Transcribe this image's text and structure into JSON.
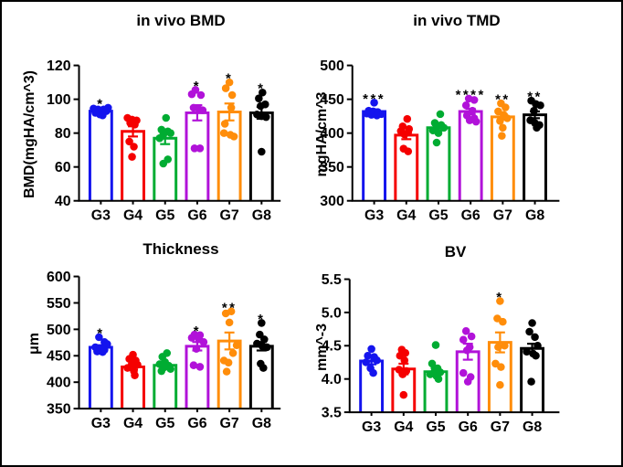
{
  "figure": {
    "background": "#ffffff",
    "border_color": "#000000"
  },
  "groups": {
    "labels": [
      "G3",
      "G4",
      "G5",
      "G6",
      "G7",
      "G8"
    ],
    "colors": [
      "#1414EE",
      "#F50000",
      "#00AC32",
      "#B112D9",
      "#FF8D0A",
      "#000000"
    ]
  },
  "points_format": "[value, x_jitter_px]",
  "chart_data": [
    {
      "type": "bar",
      "title": "in vivo BMD",
      "ylabel": "BMD(mgHA/cm^3)",
      "ylim": [
        40,
        120
      ],
      "yticks": [
        40,
        60,
        80,
        100,
        120
      ],
      "ytick_labels": [
        "40",
        "60",
        "80",
        "100",
        "120"
      ],
      "categories": [
        "G3",
        "G4",
        "G5",
        "G6",
        "G7",
        "G8"
      ],
      "bar_means": [
        93,
        81,
        77,
        92,
        92.5,
        92
      ],
      "bar_sem": [
        1.5,
        3,
        3.5,
        4.5,
        5,
        3.5
      ],
      "significance": [
        "*",
        "",
        "",
        "*",
        "*",
        "*"
      ],
      "points": [
        [
          [
            95,
            8
          ],
          [
            94.5,
            -8
          ],
          [
            94,
            -3
          ],
          [
            94,
            3
          ],
          [
            93,
            6
          ],
          [
            92,
            -6
          ],
          [
            91,
            -1
          ],
          [
            90.5,
            2
          ]
        ],
        [
          [
            89,
            -6
          ],
          [
            88,
            -1
          ],
          [
            87.5,
            4
          ],
          [
            86,
            -3
          ],
          [
            85,
            2
          ],
          [
            75,
            -4
          ],
          [
            72,
            1
          ],
          [
            66,
            -1
          ]
        ],
        [
          [
            89,
            1
          ],
          [
            82,
            -4
          ],
          [
            81,
            3
          ],
          [
            80,
            6
          ],
          [
            79,
            -2
          ],
          [
            77,
            -6
          ],
          [
            64.5,
            3
          ],
          [
            62,
            -2
          ]
        ],
        [
          [
            105.5,
            -2
          ],
          [
            103,
            -6
          ],
          [
            102.5,
            4
          ],
          [
            95,
            -4
          ],
          [
            94,
            2
          ],
          [
            93.5,
            6
          ],
          [
            71,
            -3
          ],
          [
            71,
            3
          ]
        ],
        [
          [
            110,
            0
          ],
          [
            106.5,
            -4
          ],
          [
            102.5,
            3
          ],
          [
            95,
            2
          ],
          [
            85.5,
            -5
          ],
          [
            80,
            -6
          ],
          [
            79,
            1
          ],
          [
            78,
            5
          ]
        ],
        [
          [
            104,
            1
          ],
          [
            100.5,
            -3
          ],
          [
            97,
            4
          ],
          [
            96,
            -1
          ],
          [
            91,
            -5
          ],
          [
            90,
            0
          ],
          [
            89.5,
            5
          ],
          [
            69,
            0
          ]
        ]
      ]
    },
    {
      "type": "bar",
      "title": "in vivo TMD",
      "ylabel": "mgHA/cm^3",
      "ylim": [
        300,
        500
      ],
      "yticks": [
        300,
        350,
        400,
        450,
        500
      ],
      "ytick_labels": [
        "300",
        "350",
        "400",
        "450",
        "500"
      ],
      "categories": [
        "G3",
        "G4",
        "G5",
        "G6",
        "G7",
        "G8"
      ],
      "bar_means": [
        432,
        397,
        408,
        432,
        424,
        427
      ],
      "bar_sem": [
        3,
        6,
        4,
        4,
        4,
        5
      ],
      "significance": [
        "***",
        "",
        "",
        "****",
        "**",
        "**"
      ],
      "points": [
        [
          [
            445,
            0
          ],
          [
            433,
            -6
          ],
          [
            432,
            -1
          ],
          [
            431,
            4
          ],
          [
            429,
            -8
          ],
          [
            428,
            8
          ],
          [
            427,
            -3
          ],
          [
            426,
            3
          ]
        ],
        [
          [
            421,
            1
          ],
          [
            410,
            -4
          ],
          [
            406,
            3
          ],
          [
            403,
            -6
          ],
          [
            401,
            2
          ],
          [
            398,
            -2
          ],
          [
            377,
            -3
          ],
          [
            373,
            2
          ]
        ],
        [
          [
            428,
            2
          ],
          [
            415,
            -4
          ],
          [
            412,
            3
          ],
          [
            410,
            -1
          ],
          [
            408,
            6
          ],
          [
            404,
            -6
          ],
          [
            400,
            0
          ],
          [
            386,
            -2
          ]
        ],
        [
          [
            451,
            -2
          ],
          [
            449,
            4
          ],
          [
            441,
            -5
          ],
          [
            433,
            2
          ],
          [
            426,
            -4
          ],
          [
            422,
            4
          ],
          [
            419,
            -1
          ],
          [
            417,
            6
          ]
        ],
        [
          [
            444,
            -2
          ],
          [
            438,
            3
          ],
          [
            432,
            -5
          ],
          [
            427,
            1
          ],
          [
            422,
            5
          ],
          [
            418,
            -3
          ],
          [
            408,
            0
          ],
          [
            396,
            -1
          ]
        ],
        [
          [
            448,
            -4
          ],
          [
            443,
            1
          ],
          [
            441,
            6
          ],
          [
            433,
            -1
          ],
          [
            419,
            -5
          ],
          [
            415,
            0
          ],
          [
            412,
            5
          ],
          [
            408,
            2
          ]
        ]
      ]
    },
    {
      "type": "bar",
      "title": "Thickness",
      "ylabel": "μm",
      "ylim": [
        350,
        600
      ],
      "yticks": [
        350,
        400,
        450,
        500,
        550,
        600
      ],
      "ytick_labels": [
        "350",
        "400",
        "450",
        "500",
        "550",
        "600"
      ],
      "categories": [
        "G3",
        "G4",
        "G5",
        "G6",
        "G7",
        "G8"
      ],
      "bar_means": [
        466,
        429,
        432,
        468,
        478,
        468
      ],
      "bar_sem": [
        4,
        5,
        4,
        8,
        16,
        8
      ],
      "significance": [
        "*",
        "",
        "",
        "*",
        "**",
        "*"
      ],
      "points": [
        [
          [
            485,
            -2
          ],
          [
            476,
            4
          ],
          [
            472,
            7
          ],
          [
            466,
            -6
          ],
          [
            464,
            -1
          ],
          [
            461,
            4
          ],
          [
            458,
            -4
          ],
          [
            457,
            2
          ]
        ],
        [
          [
            452,
            0
          ],
          [
            444,
            -4
          ],
          [
            441,
            3
          ],
          [
            436,
            -1
          ],
          [
            433,
            5
          ],
          [
            427,
            -6
          ],
          [
            421,
            1
          ],
          [
            413,
            2
          ]
        ],
        [
          [
            455,
            2
          ],
          [
            448,
            -3
          ],
          [
            438,
            0
          ],
          [
            434,
            -6
          ],
          [
            431,
            4
          ],
          [
            428,
            -1
          ],
          [
            425,
            6
          ],
          [
            421,
            -4
          ]
        ],
        [
          [
            490,
            -3
          ],
          [
            489,
            3
          ],
          [
            484,
            -6
          ],
          [
            481,
            2
          ],
          [
            476,
            7
          ],
          [
            463,
            -1
          ],
          [
            432,
            -4
          ],
          [
            429,
            3
          ]
        ],
        [
          [
            534,
            2
          ],
          [
            530,
            -4
          ],
          [
            513,
            0
          ],
          [
            470,
            8
          ],
          [
            455,
            4
          ],
          [
            441,
            -6
          ],
          [
            437,
            -1
          ],
          [
            420,
            -3
          ]
        ],
        [
          [
            512,
            0
          ],
          [
            490,
            -2
          ],
          [
            481,
            3
          ],
          [
            473,
            -5
          ],
          [
            468,
            1
          ],
          [
            466,
            6
          ],
          [
            435,
            -1
          ],
          [
            427,
            2
          ]
        ]
      ]
    },
    {
      "type": "bar",
      "title": "BV",
      "ylabel": "mm^-3",
      "ylim": [
        3.5,
        5.5
      ],
      "yticks": [
        3.5,
        4.0,
        4.5,
        5.0,
        5.5
      ],
      "ytick_labels": [
        "3.5",
        "4.0",
        "4.5",
        "5.0",
        "5.5"
      ],
      "categories": [
        "G3",
        "G4",
        "G5",
        "G6",
        "G7",
        "G8"
      ],
      "bar_means": [
        4.27,
        4.15,
        4.11,
        4.41,
        4.55,
        4.46
      ],
      "bar_sem": [
        0.05,
        0.08,
        0.05,
        0.12,
        0.15,
        0.07
      ],
      "significance": [
        "",
        "",
        "",
        "",
        "*",
        ""
      ],
      "points": [
        [
          [
            4.45,
            0
          ],
          [
            4.35,
            -4
          ],
          [
            4.33,
            3
          ],
          [
            4.28,
            6
          ],
          [
            4.25,
            -6
          ],
          [
            4.16,
            -1
          ],
          [
            4.09,
            2
          ]
        ],
        [
          [
            4.44,
            -2
          ],
          [
            4.39,
            2
          ],
          [
            4.35,
            -4
          ],
          [
            4.28,
            1
          ],
          [
            4.14,
            -5
          ],
          [
            4.12,
            3
          ],
          [
            4.07,
            -1
          ],
          [
            3.76,
            0
          ]
        ],
        [
          [
            4.51,
            0
          ],
          [
            4.23,
            -4
          ],
          [
            4.16,
            2
          ],
          [
            4.13,
            -1
          ],
          [
            4.1,
            5
          ],
          [
            4.07,
            -6
          ],
          [
            4.04,
            1
          ],
          [
            4.0,
            3
          ]
        ],
        [
          [
            4.72,
            -2
          ],
          [
            4.64,
            4
          ],
          [
            4.59,
            -5
          ],
          [
            4.48,
            2
          ],
          [
            4.43,
            -1
          ],
          [
            4.09,
            -5
          ],
          [
            4.03,
            3
          ],
          [
            3.96,
            0
          ]
        ],
        [
          [
            5.17,
            0
          ],
          [
            4.91,
            -3
          ],
          [
            4.86,
            3
          ],
          [
            4.5,
            5
          ],
          [
            4.48,
            -2
          ],
          [
            4.23,
            -5
          ],
          [
            4.18,
            1
          ],
          [
            3.91,
            0
          ]
        ],
        [
          [
            4.84,
            0
          ],
          [
            4.71,
            -3
          ],
          [
            4.63,
            3
          ],
          [
            4.5,
            6
          ],
          [
            4.41,
            -6
          ],
          [
            4.38,
            1
          ],
          [
            4.35,
            4
          ],
          [
            3.96,
            -1
          ]
        ]
      ]
    }
  ]
}
